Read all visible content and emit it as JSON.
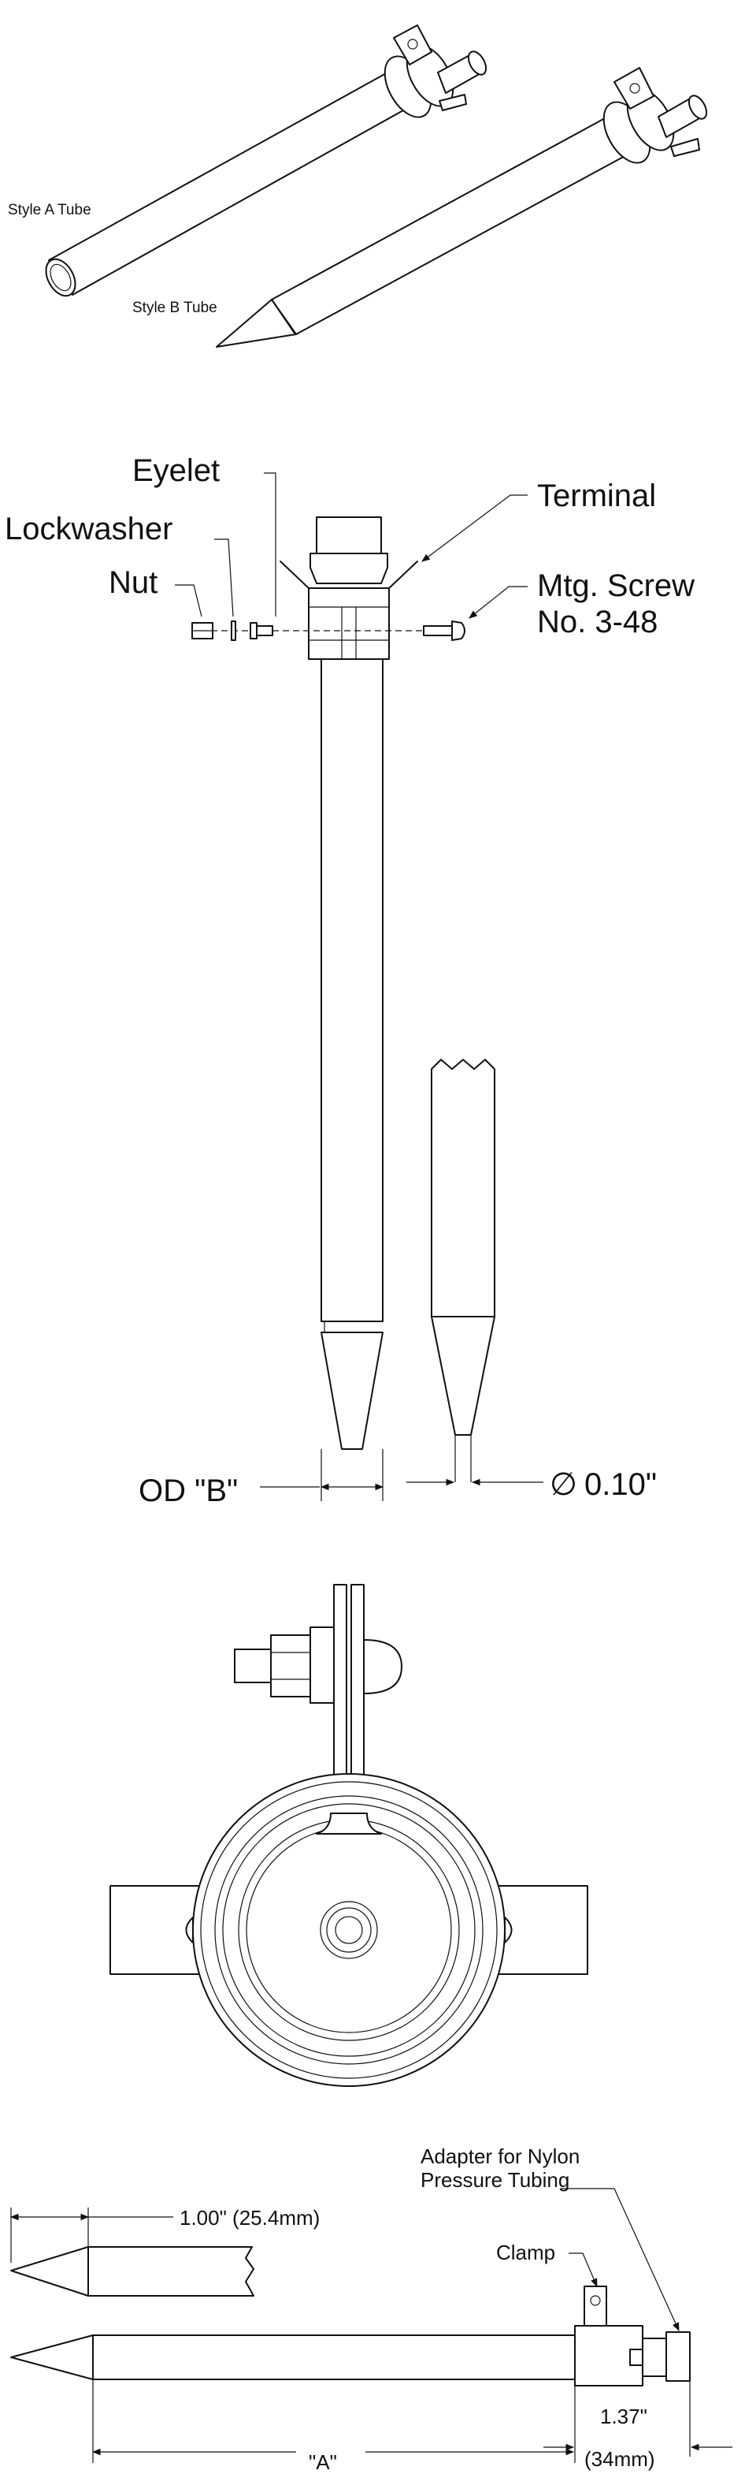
{
  "section1": {
    "style_a_label": "Style A Tube",
    "style_b_label": "Style B Tube"
  },
  "section2": {
    "eyelet_label": "Eyelet",
    "lockwasher_label": "Lockwasher",
    "nut_label": "Nut",
    "terminal_label": "Terminal",
    "screw_label_line1": "Mtg. Screw",
    "screw_label_line2": "No. 3-48",
    "od_label": "OD \"B\"",
    "diameter_symbol": "∅",
    "tip_diameter": "0.10\""
  },
  "section4": {
    "adapter_line1": "Adapter for Nylon",
    "adapter_line2": "Pressure Tubing",
    "clamp_label": "Clamp",
    "tip_length": "1.00\" (25.4mm)",
    "clamp_dim_line1": "1.37\"",
    "clamp_dim_line2": "(34mm)",
    "overall_label": "\"A\""
  }
}
